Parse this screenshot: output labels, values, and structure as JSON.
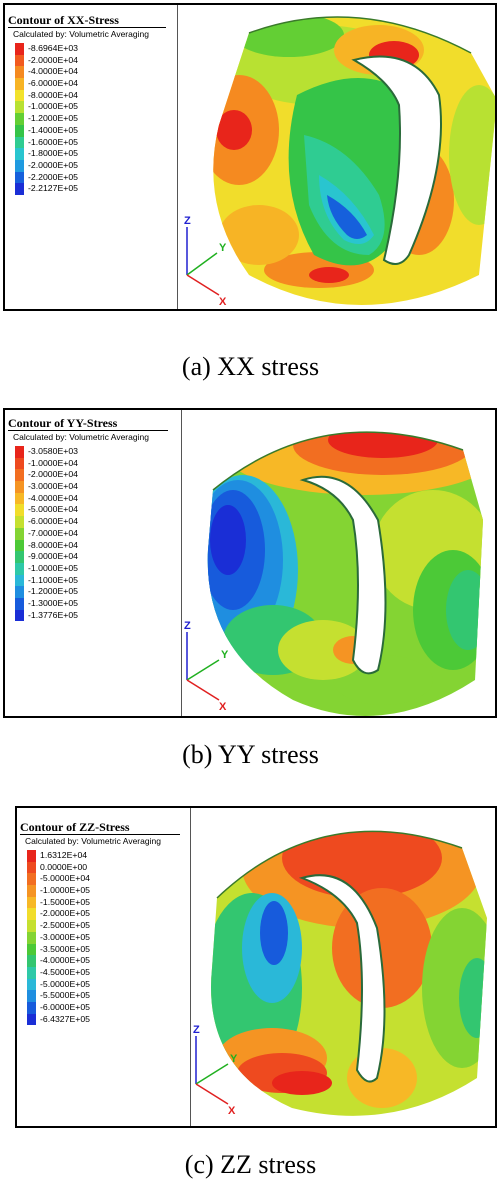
{
  "panels": [
    {
      "title": "Contour of XX-Stress",
      "subtitle": "Calculated by: Volumetric Averaging",
      "levels": [
        "-8.6964E+03",
        "-2.0000E+04",
        "-4.0000E+04",
        "-6.0000E+04",
        "-8.0000E+04",
        "-1.0000E+05",
        "-1.2000E+05",
        "-1.4000E+05",
        "-1.6000E+05",
        "-1.8000E+05",
        "-2.0000E+05",
        "-2.2000E+05",
        "-2.2127E+05"
      ],
      "colors": [
        "#e8251b",
        "#f25a1f",
        "#f58a20",
        "#f7b425",
        "#f2e22c",
        "#b8e132",
        "#63cf34",
        "#35c448",
        "#2fcc92",
        "#29c5cf",
        "#1f9ae0",
        "#1660dc",
        "#1a2ed6"
      ],
      "axes": {
        "z": "Z",
        "y": "Y",
        "x": "X"
      },
      "caption": "(a) XX stress"
    },
    {
      "title": "Contour of YY-Stress",
      "subtitle": "Calculated by: Volumetric Averaging",
      "levels": [
        "-3.0580E+03",
        "-1.0000E+04",
        "-2.0000E+04",
        "-3.0000E+04",
        "-4.0000E+04",
        "-5.0000E+04",
        "-6.0000E+04",
        "-7.0000E+04",
        "-8.0000E+04",
        "-9.0000E+04",
        "-1.0000E+05",
        "-1.1000E+05",
        "-1.2000E+05",
        "-1.3000E+05",
        "-1.3776E+05"
      ],
      "colors": [
        "#e8251b",
        "#ee4a1f",
        "#f26e21",
        "#f59423",
        "#f7b826",
        "#f1dd2b",
        "#c5e030",
        "#84d433",
        "#4cc937",
        "#33c670",
        "#2ec9a8",
        "#2ab8d8",
        "#1f8ee0",
        "#175bdc",
        "#1a2ed6"
      ],
      "axes": {
        "z": "Z",
        "y": "Y",
        "x": "X"
      },
      "caption": "(b) YY stress"
    },
    {
      "title": "Contour of ZZ-Stress",
      "subtitle": "Calculated by: Volumetric Averaging",
      "levels": [
        "1.6312E+04",
        "0.0000E+00",
        "-5.0000E+04",
        "-1.0000E+05",
        "-1.5000E+05",
        "-2.0000E+05",
        "-2.5000E+05",
        "-3.0000E+05",
        "-3.5000E+05",
        "-4.0000E+05",
        "-4.5000E+05",
        "-5.0000E+05",
        "-5.5000E+05",
        "-6.0000E+05",
        "-6.4327E+05"
      ],
      "colors": [
        "#e8251b",
        "#ee4a1f",
        "#f26e21",
        "#f59423",
        "#f7b826",
        "#f1dd2b",
        "#c5e030",
        "#84d433",
        "#4cc937",
        "#33c670",
        "#2ec9a8",
        "#2ab8d8",
        "#1f8ee0",
        "#175bdc",
        "#1a2ed6"
      ],
      "axes": {
        "z": "Z",
        "y": "Y",
        "x": "X"
      },
      "caption": "(c) ZZ stress"
    }
  ]
}
